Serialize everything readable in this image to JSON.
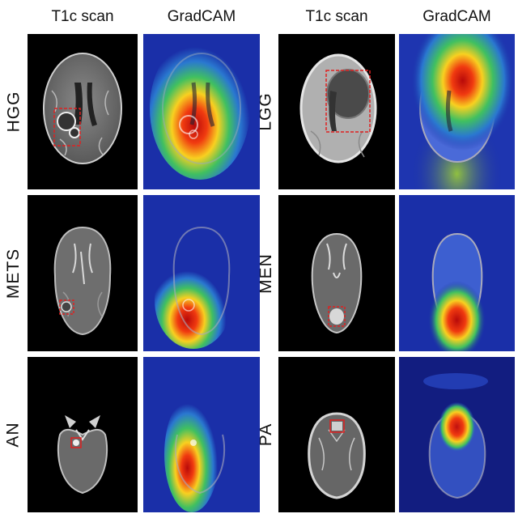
{
  "headers": {
    "left_scan": "T1c scan",
    "left_cam": "GradCAM",
    "right_scan": "T1c scan",
    "right_cam": "GradCAM"
  },
  "rows": [
    {
      "left_label": "HGG",
      "right_label": "LGG"
    },
    {
      "left_label": "METS",
      "right_label": "MEN"
    },
    {
      "left_label": "AN",
      "right_label": "PA"
    }
  ],
  "colors": {
    "background": "#ffffff",
    "scan_background": "#000000",
    "bbox": "#e02020",
    "cam_low": "#1a2fa8",
    "cam_high": "#c01010"
  }
}
